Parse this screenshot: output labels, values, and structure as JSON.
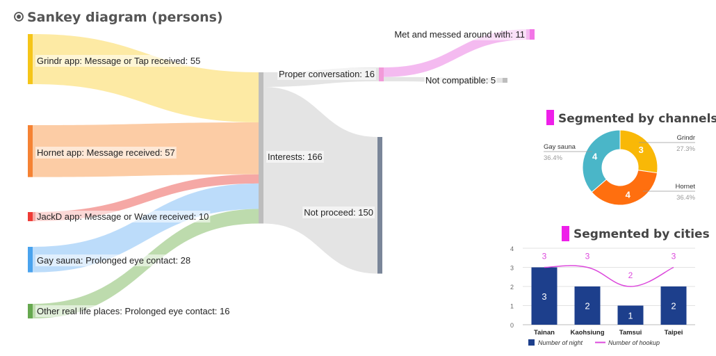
{
  "header": {
    "title": "Sankey diagram (persons)"
  },
  "colors": {
    "grindr": "#fde99f",
    "hornet": "#fcc9a0",
    "jackd": "#f4a3a0",
    "sauna": "#b8dafa",
    "reallife": "#b9d9a9",
    "interests_link": "#e3e3e3",
    "proper_to_met": "#f3b6ef",
    "grindr_bar": "#f5c518",
    "hornet_bar": "#f58233",
    "jackd_bar": "#ee3b36",
    "sauna_bar": "#4aa3ee",
    "reallife_bar": "#66a84f",
    "interests_bar": "#bdbdbd",
    "notproceed_bar": "#7a8699",
    "proper_bar": "#f29ad9",
    "met_bar": "#f275e6",
    "notcompat_bar": "#bdbdbd",
    "accent": "#ee1fe9",
    "donut_grindr": "#f9b807",
    "donut_hornet": "#ff6f0f",
    "donut_sauna": "#4ab6c8",
    "bar_night": "#1d3f8c",
    "line_hookup": "#dc48dc"
  },
  "chart_data": [
    {
      "type": "sankey",
      "title": "Sankey diagram (persons)",
      "nodes": [
        {
          "id": "grindr",
          "label": "Grindr app: Message or Tap received: 55"
        },
        {
          "id": "hornet",
          "label": "Hornet app: Message received: 57"
        },
        {
          "id": "jackd",
          "label": "JackD app: Message or Wave received: 10"
        },
        {
          "id": "sauna",
          "label": "Gay sauna: Prolonged eye contact: 28"
        },
        {
          "id": "reallife",
          "label": "Other real life places: Prolonged eye contact: 16"
        },
        {
          "id": "interests",
          "label": "Interests: 166"
        },
        {
          "id": "proper",
          "label": "Proper conversation: 16"
        },
        {
          "id": "notproceed",
          "label": "Not proceed: 150"
        },
        {
          "id": "met",
          "label": "Met and messed around with: 11"
        },
        {
          "id": "notcompat",
          "label": "Not compatible: 5"
        }
      ],
      "links": [
        {
          "source": "grindr",
          "target": "interests",
          "value": 55
        },
        {
          "source": "hornet",
          "target": "interests",
          "value": 57
        },
        {
          "source": "jackd",
          "target": "interests",
          "value": 10
        },
        {
          "source": "sauna",
          "target": "interests",
          "value": 28
        },
        {
          "source": "reallife",
          "target": "interests",
          "value": 16
        },
        {
          "source": "interests",
          "target": "proper",
          "value": 16
        },
        {
          "source": "interests",
          "target": "notproceed",
          "value": 150
        },
        {
          "source": "proper",
          "target": "met",
          "value": 11
        },
        {
          "source": "proper",
          "target": "notcompat",
          "value": 5
        }
      ]
    },
    {
      "type": "pie",
      "donut": true,
      "title": "Segmented by channels",
      "slices": [
        {
          "label": "Grindr",
          "value": 3,
          "percent": "27.3%"
        },
        {
          "label": "Hornet",
          "value": 4,
          "percent": "36.4%"
        },
        {
          "label": "Gay sauna",
          "value": 4,
          "percent": "36.4%"
        }
      ]
    },
    {
      "type": "bar",
      "title": "Segmented by cities",
      "categories": [
        "Tainan",
        "Kaohsiung",
        "Tamsui",
        "Taipei"
      ],
      "series": [
        {
          "name": "Number of night",
          "type": "bar",
          "values": [
            3,
            2,
            1,
            2
          ]
        },
        {
          "name": "Number of hookup",
          "type": "line",
          "values": [
            3,
            3,
            2,
            3
          ]
        }
      ],
      "ylim": [
        0,
        4
      ],
      "yticks": [
        "0",
        "1",
        "2",
        "3",
        "4"
      ],
      "legend": "bottom",
      "grid": true
    }
  ]
}
